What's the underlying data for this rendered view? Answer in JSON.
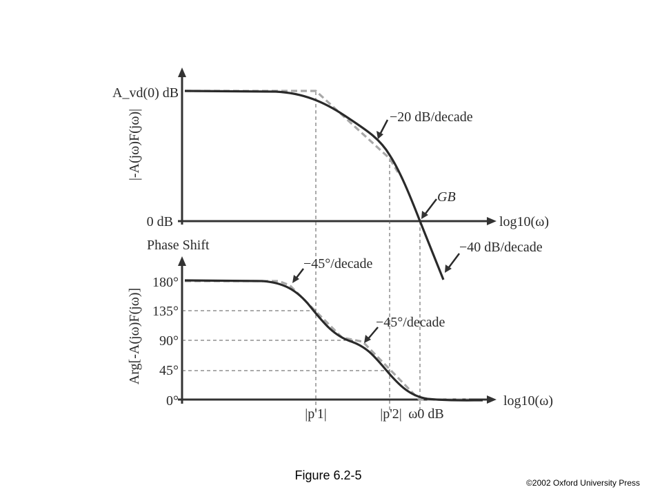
{
  "magnitude_plot": {
    "y_label": "|-A(jω)F(jω)|",
    "y_tick_top": "A_vd(0) dB",
    "y_tick_zero": "0 dB",
    "x_label": "log10(ω)",
    "annotation_slope_1": "−20 dB/decade",
    "annotation_gb": "GB",
    "annotation_slope_2": "−40 dB/decade"
  },
  "phase_plot": {
    "title": "Phase Shift",
    "y_label": "Arg[-A(jω)F(jω)]",
    "y_ticks": [
      "180°",
      "135°",
      "90°",
      "45°",
      "0°"
    ],
    "x_label": "log10(ω)",
    "annotation_slope_1": "−45°/decade",
    "annotation_slope_2": "−45°/decade",
    "x_marks": [
      "|p'1|",
      "|p'2|",
      "ω0 dB"
    ]
  },
  "caption": "Figure 6.2-5",
  "copyright": "©2002 Oxford University Press"
}
